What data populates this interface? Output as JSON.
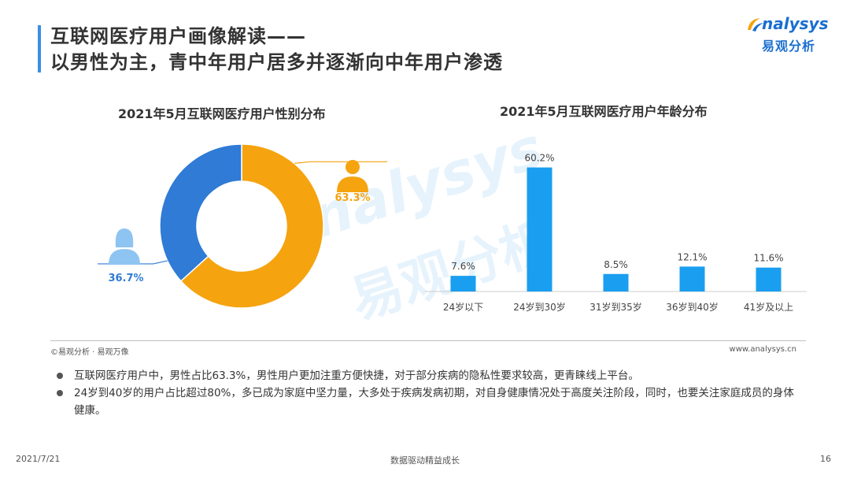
{
  "title": {
    "line1": "互联网医疗用户画像解读——",
    "line2": "以男性为主，青中年用户居多并逐渐向中年用户渗透"
  },
  "logo": {
    "en": "nalysys",
    "cn": "易观分析"
  },
  "watermark": {
    "en": "nalysys",
    "cn": "易观分析"
  },
  "colors": {
    "male": "#f5a30f",
    "female": "#2f7bd6",
    "bar": "#1a9ef0",
    "accent": "#3a8ee6"
  },
  "chart_data": [
    {
      "type": "pie",
      "title": "2021年5月互联网医疗用户性别分布",
      "slices": [
        {
          "label": "63.3%",
          "value": 63.3,
          "icon": "male-user-icon",
          "color": "#f5a30f"
        },
        {
          "label": "36.7%",
          "value": 36.7,
          "icon": "female-user-icon",
          "color": "#2f7bd6"
        }
      ],
      "donut": true
    },
    {
      "type": "bar",
      "title": "2021年5月互联网医疗用户年龄分布",
      "categories": [
        "24岁以下",
        "24岁到30岁",
        "31岁到35岁",
        "36岁到40岁",
        "41岁及以上"
      ],
      "values": [
        7.6,
        60.2,
        8.5,
        12.1,
        11.6
      ],
      "labels": [
        "7.6%",
        "60.2%",
        "8.5%",
        "12.1%",
        "11.6%"
      ],
      "ylim": [
        0,
        65
      ],
      "color": "#1a9ef0"
    }
  ],
  "source": "©易观分析 · 易观万像",
  "site": "www.analysys.cn",
  "bullets": [
    "互联网医疗用户中，男性占比63.3%，男性用户更加注重方便快捷，对于部分疾病的隐私性要求较高，更青睐线上平台。",
    "24岁到40岁的用户占比超过80%，多已成为家庭中坚力量，大多处于疾病发病初期，对自身健康情况处于高度关注阶段，同时，也要关注家庭成员的身体健康。"
  ],
  "footer": {
    "date": "2021/7/21",
    "center": "数据驱动精益成长",
    "page": "16"
  }
}
